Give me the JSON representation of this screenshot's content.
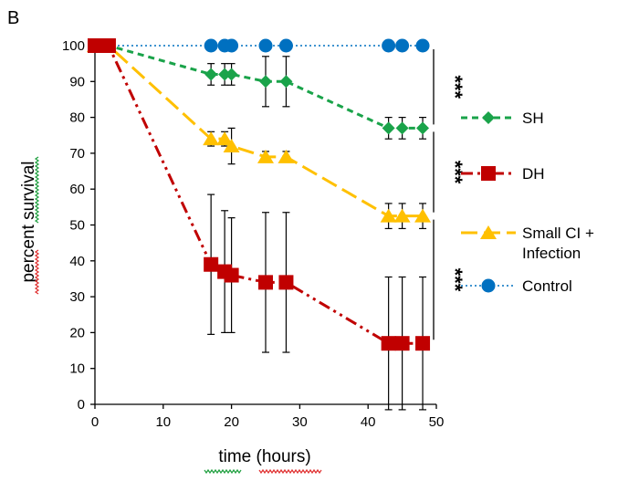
{
  "panel_label": "B",
  "chart_data": {
    "type": "line",
    "title": "",
    "xlabel": "time (hours)",
    "ylabel": "percent survival",
    "xlim": [
      0,
      50
    ],
    "ylim": [
      0,
      100
    ],
    "xticks": [
      0,
      10,
      20,
      30,
      40,
      50
    ],
    "yticks": [
      0,
      10,
      20,
      30,
      40,
      50,
      60,
      70,
      80,
      90,
      100
    ],
    "grid": false,
    "legend_position": "right",
    "series": [
      {
        "name": "SH",
        "color": "#1aa34a",
        "marker": "diamond",
        "dash": "dashed",
        "points": [
          {
            "x": 0,
            "y": 100,
            "err": 0
          },
          {
            "x": 1,
            "y": 100,
            "err": 0
          },
          {
            "x": 2,
            "y": 100,
            "err": 0
          },
          {
            "x": 17,
            "y": 92,
            "err": 3
          },
          {
            "x": 19,
            "y": 92,
            "err": 3
          },
          {
            "x": 20,
            "y": 92,
            "err": 3
          },
          {
            "x": 25,
            "y": 90,
            "err": 7
          },
          {
            "x": 28,
            "y": 90,
            "err": 7
          },
          {
            "x": 43,
            "y": 77,
            "err": 3
          },
          {
            "x": 45,
            "y": 77,
            "err": 3
          },
          {
            "x": 48,
            "y": 77,
            "err": 3
          }
        ]
      },
      {
        "name": "DH",
        "color": "#c00000",
        "marker": "square",
        "dash": "dashdotdot",
        "points": [
          {
            "x": 0,
            "y": 100,
            "err": 0
          },
          {
            "x": 1,
            "y": 100,
            "err": 0
          },
          {
            "x": 2,
            "y": 100,
            "err": 0
          },
          {
            "x": 17,
            "y": 39,
            "err": 19.5
          },
          {
            "x": 19,
            "y": 37,
            "err": 17
          },
          {
            "x": 20,
            "y": 36,
            "err": 16
          },
          {
            "x": 25,
            "y": 34,
            "err": 19.5
          },
          {
            "x": 28,
            "y": 34,
            "err": 19.5
          },
          {
            "x": 43,
            "y": 17,
            "err": 18.5
          },
          {
            "x": 45,
            "y": 17,
            "err": 18.5
          },
          {
            "x": 48,
            "y": 17,
            "err": 18.5
          }
        ]
      },
      {
        "name": "Small CI + Infection",
        "color": "#ffc000",
        "marker": "triangle",
        "dash": "longdash",
        "points": [
          {
            "x": 0,
            "y": 100,
            "err": 0
          },
          {
            "x": 1,
            "y": 100,
            "err": 0
          },
          {
            "x": 2,
            "y": 100,
            "err": 0
          },
          {
            "x": 17,
            "y": 74,
            "err": 2
          },
          {
            "x": 19,
            "y": 74,
            "err": 2
          },
          {
            "x": 20,
            "y": 72,
            "err": 5
          },
          {
            "x": 25,
            "y": 69,
            "err": 1.5
          },
          {
            "x": 28,
            "y": 69,
            "err": 1.5
          },
          {
            "x": 43,
            "y": 52.5,
            "err": 3.5
          },
          {
            "x": 45,
            "y": 52.5,
            "err": 3.5
          },
          {
            "x": 48,
            "y": 52.5,
            "err": 3.5
          }
        ]
      },
      {
        "name": "Control",
        "color": "#0070c0",
        "marker": "circle",
        "dash": "dotted",
        "points": [
          {
            "x": 0,
            "y": 100,
            "err": 0
          },
          {
            "x": 1,
            "y": 100,
            "err": 0
          },
          {
            "x": 2,
            "y": 100,
            "err": 0
          },
          {
            "x": 17,
            "y": 100,
            "err": 0
          },
          {
            "x": 19,
            "y": 100,
            "err": 0
          },
          {
            "x": 20,
            "y": 100,
            "err": 0
          },
          {
            "x": 25,
            "y": 100,
            "err": 0
          },
          {
            "x": 28,
            "y": 100,
            "err": 0
          },
          {
            "x": 43,
            "y": 100,
            "err": 0
          },
          {
            "x": 45,
            "y": 100,
            "err": 0
          },
          {
            "x": 48,
            "y": 100,
            "err": 0
          }
        ]
      }
    ],
    "significance": [
      {
        "label": "***",
        "from": 100,
        "to": 77
      },
      {
        "label": "***",
        "from": 77,
        "to": 52.5
      },
      {
        "label": "***",
        "from": 52.5,
        "to": 17
      }
    ],
    "legend": [
      {
        "series": 0,
        "lines": [
          "SH"
        ]
      },
      {
        "series": 1,
        "lines": [
          "DH"
        ]
      },
      {
        "series": 2,
        "lines": [
          "Small CI +",
          "Infection"
        ]
      },
      {
        "series": 3,
        "lines": [
          "Control"
        ]
      }
    ]
  }
}
